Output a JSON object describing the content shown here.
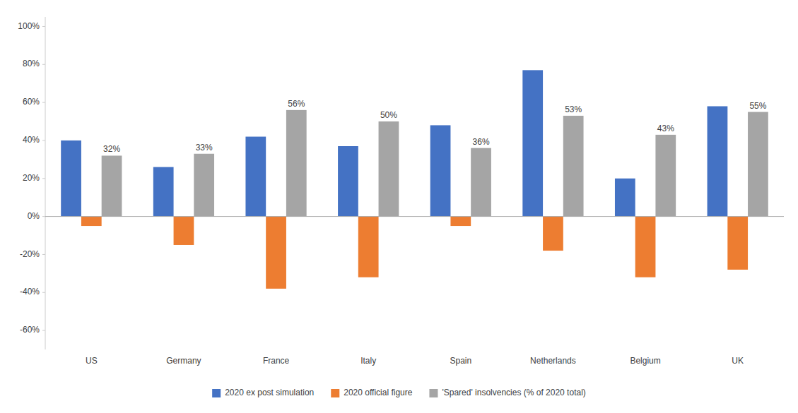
{
  "chart_data": {
    "type": "bar",
    "categories": [
      "US",
      "Germany",
      "France",
      "Italy",
      "Spain",
      "Netherlands",
      "Belgium",
      "UK"
    ],
    "series": [
      {
        "name": "2020 ex post simulation",
        "color": "#4472C4",
        "values": [
          0.4,
          0.26,
          0.42,
          0.37,
          0.48,
          0.77,
          0.2,
          0.58
        ]
      },
      {
        "name": "2020 official figure",
        "color": "#ED7D31",
        "values": [
          -0.05,
          -0.15,
          -0.38,
          -0.32,
          -0.05,
          -0.18,
          -0.32,
          -0.28
        ]
      },
      {
        "name": "'Spared' insolvencies (% of 2020 total)",
        "color": "#A5A5A5",
        "values": [
          0.32,
          0.33,
          0.56,
          0.5,
          0.36,
          0.53,
          0.43,
          0.55
        ],
        "value_labels": [
          "32%",
          "33%",
          "56%",
          "50%",
          "36%",
          "53%",
          "43%",
          "55%"
        ]
      }
    ],
    "ylim": [
      -0.7,
      1.05
    ],
    "yticks": [
      {
        "value": -0.6,
        "label": "-60%"
      },
      {
        "value": -0.4,
        "label": "-40%"
      },
      {
        "value": -0.2,
        "label": "-20%"
      },
      {
        "value": 0.0,
        "label": "0%"
      },
      {
        "value": 0.2,
        "label": "20%"
      },
      {
        "value": 0.4,
        "label": "40%"
      },
      {
        "value": 0.6,
        "label": "60%"
      },
      {
        "value": 0.8,
        "label": "80%"
      },
      {
        "value": 1.0,
        "label": "100%"
      }
    ],
    "grid": false,
    "legend": "bottom"
  }
}
